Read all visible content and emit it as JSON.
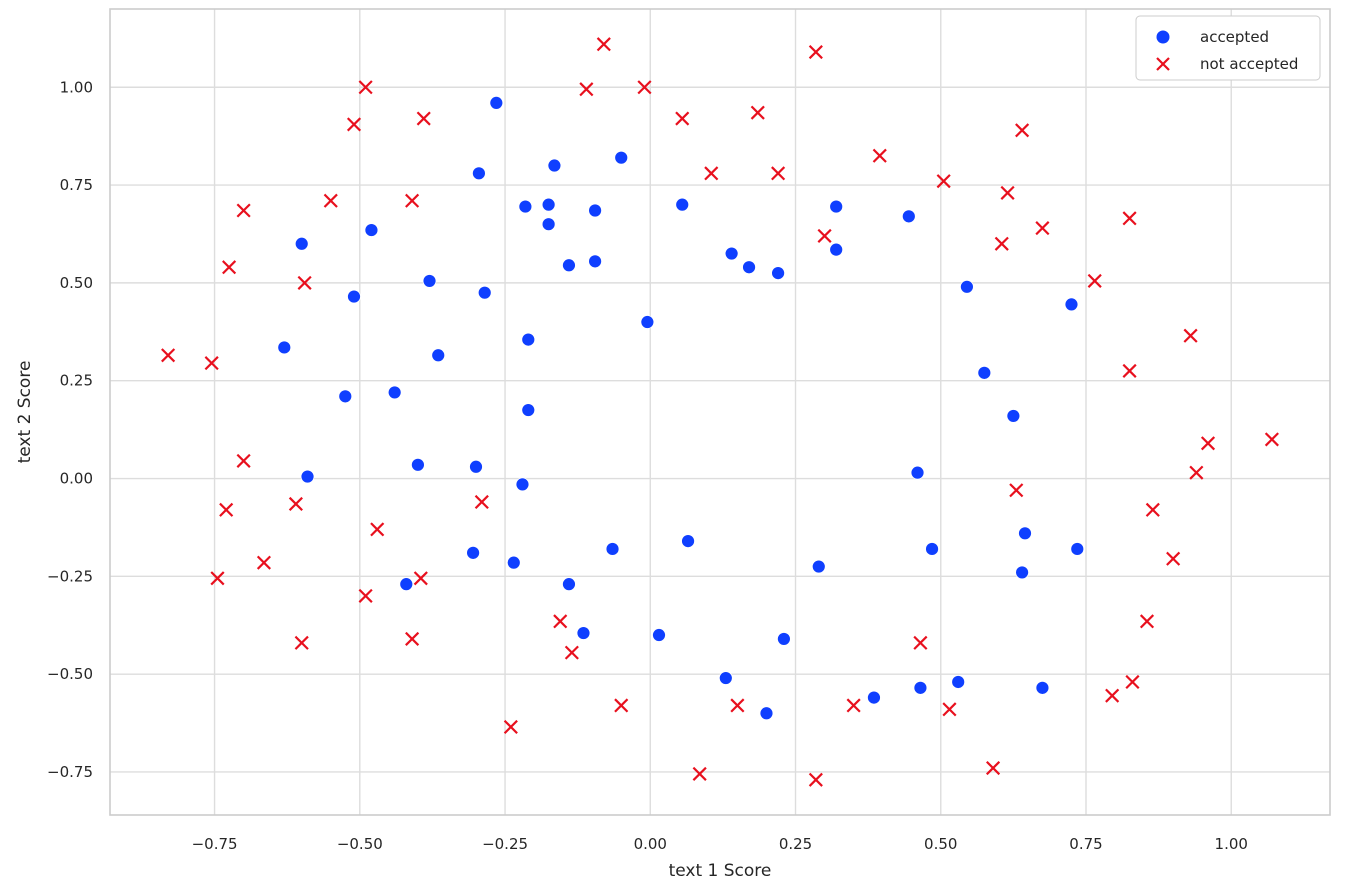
{
  "chart_data": {
    "type": "scatter",
    "title": "",
    "xlabel": "text 1 Score",
    "ylabel": "text 2 Score",
    "xlim": [
      -0.93,
      1.17
    ],
    "ylim": [
      -0.86,
      1.2
    ],
    "xticks": [
      -0.75,
      -0.5,
      -0.25,
      0.0,
      0.25,
      0.5,
      0.75,
      1.0
    ],
    "xtick_labels": [
      "−0.75",
      "−0.50",
      "−0.25",
      "0.00",
      "0.25",
      "0.50",
      "0.75",
      "1.00"
    ],
    "yticks": [
      -0.75,
      -0.5,
      -0.25,
      0.0,
      0.25,
      0.5,
      0.75,
      1.0
    ],
    "ytick_labels": [
      "−0.75",
      "−0.50",
      "−0.25",
      "0.00",
      "0.25",
      "0.50",
      "0.75",
      "1.00"
    ],
    "grid": true,
    "legend_position": "top-right",
    "series": [
      {
        "name": "accepted",
        "marker": "circle",
        "color": "#0f3fff",
        "points": [
          [
            -0.265,
            0.96
          ],
          [
            -0.05,
            0.82
          ],
          [
            -0.165,
            0.8
          ],
          [
            -0.295,
            0.78
          ],
          [
            -0.215,
            0.695
          ],
          [
            -0.175,
            0.7
          ],
          [
            -0.095,
            0.685
          ],
          [
            -0.175,
            0.65
          ],
          [
            -0.48,
            0.635
          ],
          [
            -0.6,
            0.6
          ],
          [
            -0.14,
            0.545
          ],
          [
            -0.095,
            0.555
          ],
          [
            -0.38,
            0.505
          ],
          [
            -0.285,
            0.475
          ],
          [
            -0.51,
            0.465
          ],
          [
            -0.005,
            0.4
          ],
          [
            -0.21,
            0.355
          ],
          [
            -0.63,
            0.335
          ],
          [
            -0.365,
            0.315
          ],
          [
            -0.44,
            0.22
          ],
          [
            -0.525,
            0.21
          ],
          [
            -0.21,
            0.175
          ],
          [
            -0.4,
            0.035
          ],
          [
            -0.3,
            0.03
          ],
          [
            -0.59,
            0.005
          ],
          [
            -0.22,
            -0.015
          ],
          [
            -0.065,
            -0.18
          ],
          [
            -0.305,
            -0.19
          ],
          [
            -0.235,
            -0.215
          ],
          [
            -0.14,
            -0.27
          ],
          [
            -0.42,
            -0.27
          ],
          [
            -0.115,
            -0.395
          ],
          [
            0.015,
            -0.4
          ],
          [
            0.055,
            0.7
          ],
          [
            0.065,
            -0.16
          ],
          [
            0.14,
            0.575
          ],
          [
            0.17,
            0.54
          ],
          [
            0.22,
            0.525
          ],
          [
            0.13,
            -0.51
          ],
          [
            0.2,
            -0.6
          ],
          [
            0.23,
            -0.41
          ],
          [
            0.32,
            0.695
          ],
          [
            0.32,
            0.585
          ],
          [
            0.29,
            -0.225
          ],
          [
            0.385,
            -0.56
          ],
          [
            0.445,
            0.67
          ],
          [
            0.545,
            0.49
          ],
          [
            0.575,
            0.27
          ],
          [
            0.46,
            0.015
          ],
          [
            0.485,
            -0.18
          ],
          [
            0.465,
            -0.535
          ],
          [
            0.53,
            -0.52
          ],
          [
            0.625,
            0.16
          ],
          [
            0.645,
            -0.14
          ],
          [
            0.64,
            -0.24
          ],
          [
            0.675,
            -0.535
          ],
          [
            0.725,
            0.445
          ],
          [
            0.735,
            -0.18
          ]
        ]
      },
      {
        "name": "not accepted",
        "marker": "x",
        "color": "#e8101e",
        "points": [
          [
            -0.08,
            1.11
          ],
          [
            0.285,
            1.09
          ],
          [
            -0.49,
            1.0
          ],
          [
            -0.11,
            0.995
          ],
          [
            -0.01,
            1.0
          ],
          [
            -0.39,
            0.92
          ],
          [
            -0.51,
            0.905
          ],
          [
            0.055,
            0.92
          ],
          [
            0.185,
            0.935
          ],
          [
            0.395,
            0.825
          ],
          [
            0.64,
            0.89
          ],
          [
            0.105,
            0.78
          ],
          [
            0.22,
            0.78
          ],
          [
            0.505,
            0.76
          ],
          [
            0.615,
            0.73
          ],
          [
            -0.55,
            0.71
          ],
          [
            -0.41,
            0.71
          ],
          [
            -0.7,
            0.685
          ],
          [
            0.825,
            0.665
          ],
          [
            0.675,
            0.64
          ],
          [
            0.3,
            0.62
          ],
          [
            0.605,
            0.6
          ],
          [
            -0.725,
            0.54
          ],
          [
            -0.595,
            0.5
          ],
          [
            0.765,
            0.505
          ],
          [
            0.93,
            0.365
          ],
          [
            -0.83,
            0.315
          ],
          [
            -0.755,
            0.295
          ],
          [
            0.825,
            0.275
          ],
          [
            1.07,
            0.1
          ],
          [
            0.96,
            0.09
          ],
          [
            0.94,
            0.015
          ],
          [
            -0.7,
            0.045
          ],
          [
            0.63,
            -0.03
          ],
          [
            -0.61,
            -0.065
          ],
          [
            -0.29,
            -0.06
          ],
          [
            -0.73,
            -0.08
          ],
          [
            0.865,
            -0.08
          ],
          [
            -0.47,
            -0.13
          ],
          [
            0.9,
            -0.205
          ],
          [
            -0.665,
            -0.215
          ],
          [
            -0.745,
            -0.255
          ],
          [
            -0.395,
            -0.255
          ],
          [
            -0.49,
            -0.3
          ],
          [
            -0.155,
            -0.365
          ],
          [
            0.855,
            -0.365
          ],
          [
            -0.41,
            -0.41
          ],
          [
            -0.6,
            -0.42
          ],
          [
            0.465,
            -0.42
          ],
          [
            -0.135,
            -0.445
          ],
          [
            0.83,
            -0.52
          ],
          [
            0.795,
            -0.555
          ],
          [
            -0.05,
            -0.58
          ],
          [
            0.15,
            -0.58
          ],
          [
            0.35,
            -0.58
          ],
          [
            0.515,
            -0.59
          ],
          [
            -0.24,
            -0.635
          ],
          [
            0.59,
            -0.74
          ],
          [
            0.085,
            -0.755
          ],
          [
            0.285,
            -0.77
          ]
        ]
      }
    ]
  }
}
